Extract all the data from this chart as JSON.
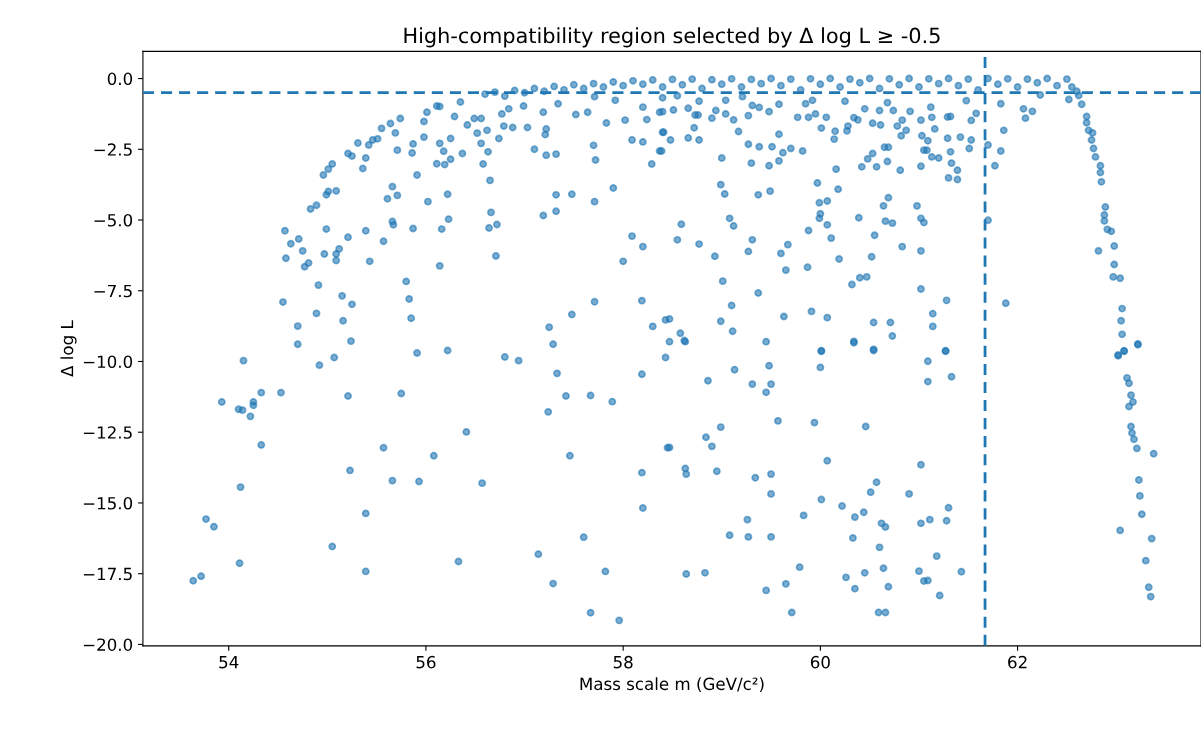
{
  "chart_data": {
    "type": "scatter",
    "title": "High-compatibility region selected by Δ log L ≥ -0.5",
    "xlabel": "Mass scale m (GeV/c²)",
    "ylabel": "Δ log L",
    "xlim": [
      53.13,
      63.86
    ],
    "ylim": [
      -20.05,
      0.96
    ],
    "xticks": [
      54,
      56,
      58,
      60,
      62
    ],
    "yticks": [
      {
        "value": 0,
        "label": "0.0"
      },
      {
        "value": -2.5,
        "label": "−2.5"
      },
      {
        "value": -5,
        "label": "−5.0"
      },
      {
        "value": -7.5,
        "label": "−7.5"
      },
      {
        "value": -10,
        "label": "−10.0"
      },
      {
        "value": -12.5,
        "label": "−12.5"
      },
      {
        "value": -15,
        "label": "−15.0"
      },
      {
        "value": -17.5,
        "label": "−17.5"
      },
      {
        "value": -20,
        "label": "−20.0"
      }
    ],
    "grid": false,
    "marker": "circle",
    "ref_lines": [
      {
        "axis": "y",
        "value": -0.5,
        "color": "#1f77b4",
        "line_style": "dashed"
      },
      {
        "axis": "x",
        "value": 61.67,
        "color": "#1f77b4",
        "line_style": "dashed"
      }
    ],
    "series": [
      {
        "color": "#1f77b4",
        "x": [
          54.15,
          53.93,
          54.1,
          54.14,
          54.22,
          54.25,
          54.25,
          54.33,
          54.33,
          54.53,
          54.7,
          54.92,
          55.07,
          55.24,
          55.21,
          55.75,
          55.91,
          56.22,
          56.8,
          56.94,
          57.29,
          57.33,
          57.42,
          57.67,
          57.89,
          57.24,
          58.19,
          58.43,
          56.41,
          55.57,
          56.08,
          57.46,
          58.45,
          55.23,
          55.66,
          55.93,
          56.57,
          58.19,
          54.12,
          55.39,
          58.2,
          53.77,
          53.85,
          55.05,
          57.6,
          57.14,
          56.33,
          54.11,
          55.39,
          57.82,
          53.64,
          53.72,
          57.29,
          57.67,
          57.96,
          58.47,
          58.63,
          59.45,
          60.01,
          60.34,
          60.54,
          61.27,
          61.09,
          59.13,
          59.48,
          60.0,
          58.86,
          59.31,
          59.5,
          59.45,
          61.09,
          61.33,
          59.57,
          59.94,
          60.46,
          58.99,
          58.84,
          58.9,
          58.47,
          60.07,
          61.02,
          58.63,
          58.64,
          58.95,
          59.34,
          59.5,
          59.5,
          60.57,
          60.51,
          60.9,
          60.01,
          60.22,
          59.83,
          60.35,
          60.44,
          60.62,
          60.66,
          61.02,
          61.11,
          61.28,
          61.3,
          59.26,
          59.08,
          59.27,
          59.5,
          60.33,
          60.6,
          61.18,
          59.79,
          58.64,
          58.83,
          60.26,
          60.45,
          60.64,
          61.0,
          61.43,
          59.45,
          59.65,
          60.35,
          60.69,
          61.05,
          61.09,
          61.21,
          59.71,
          60.59,
          60.66,
          63.02,
          63.08,
          63.22,
          63.11,
          63.13,
          63.15,
          63.17,
          63.13,
          63.15,
          63.16,
          63.18,
          63.21,
          63.38,
          63.23,
          63.24,
          63.26,
          63.04,
          63.36,
          63.3,
          63.33,
          63.35,
          54.57,
          54.63,
          54.71,
          54.58,
          54.75,
          54.77,
          54.81,
          54.91,
          54.55,
          54.7,
          54.89,
          55.15,
          55.25,
          55.16,
          54.97,
          55.09,
          55.12,
          55.09,
          54.99,
          55.21,
          55.39,
          55.43,
          55.57,
          55.66,
          55.67,
          55.87,
          55.8,
          55.83,
          55.85,
          56.14,
          56.16,
          56.23,
          56.64,
          56.72,
          56.71,
          56.66,
          57.19,
          57.32,
          57.32,
          57.48,
          57.71,
          57.9,
          58.09,
          58.2,
          58.0,
          57.71,
          57.48,
          57.25,
          58.19,
          58.3,
          58.43,
          54.83,
          54.89,
          54.96,
          55.01,
          55.05,
          55.01,
          54.99,
          55.09,
          55.21,
          55.25,
          55.31,
          55.39,
          55.36,
          55.42,
          55.46,
          55.51,
          55.55,
          55.64,
          55.74,
          55.69,
          55.71,
          55.66,
          55.61,
          55.71,
          55.91,
          55.86,
          55.87,
          55.98,
          56.02,
          55.98,
          56.01,
          56.11,
          56.19,
          56.25,
          56.18,
          56.14,
          56.25,
          56.22,
          56.14,
          56.29,
          56.37,
          56.42,
          56.58,
          56.65,
          56.63,
          56.62,
          56.52,
          56.56,
          56.74,
          56.79,
          56.88,
          57.03,
          57.1,
          57.22,
          57.32,
          57.21,
          57.22,
          57.52,
          57.7,
          57.72,
          57.83,
          58.02,
          58.09,
          58.2,
          58.24,
          58.29,
          58.37,
          58.4,
          56.11,
          56.35,
          56.49,
          56.56,
          56.77,
          56.99,
          57.19,
          57.34,
          57.64,
          57.92,
          58.2,
          58.37,
          56.84,
          57.71,
          58.4,
          58.55,
          58.77,
          58.4,
          58.51,
          58.66,
          58.73,
          58.76,
          58.41,
          58.48,
          58.66,
          58.72,
          58.77,
          58.39,
          58.9,
          58.94,
          59.04,
          59.04,
          59.12,
          59.17,
          59.27,
          59.21,
          59.31,
          59.38,
          59.48,
          59.58,
          59.58,
          59.27,
          59.38,
          59.51,
          59.62,
          59.7,
          59.82,
          59.3,
          59.48,
          59.58,
          59.0,
          58.99,
          59.03,
          59.37,
          59.49,
          58.59,
          58.55,
          58.77,
          58.93,
          59.08,
          59.12,
          59.31,
          59.27,
          59.01,
          59.1,
          59.37,
          58.47,
          58.58,
          58.62,
          58.99,
          59.11,
          59.63,
          59.91,
          60.07,
          59.87,
          59.65,
          59.6,
          59.67,
          59.88,
          59.77,
          59.88,
          59.95,
          59.85,
          59.92,
          60.01,
          60.06,
          59.97,
          59.99,
          60.07,
          59.99,
          60.0,
          60.07,
          60.11,
          60.18,
          60.16,
          60.14,
          60.15,
          60.27,
          60.28,
          60.34,
          60.38,
          60.25,
          60.45,
          60.53,
          60.61,
          60.6,
          60.68,
          60.74,
          60.83,
          60.78,
          60.87,
          60.82,
          60.91,
          61.02,
          61.12,
          61.13,
          61.16,
          61.03,
          61.09,
          61.08,
          61.05,
          61.13,
          61.2,
          61.29,
          61.32,
          61.33,
          61.39,
          61.3,
          61.39,
          61.42,
          61.53,
          61.51,
          61.53,
          61.58,
          61.48,
          61.29,
          61.32,
          61.02,
          60.81,
          60.68,
          60.57,
          60.42,
          60.48,
          60.53,
          60.65,
          60.69,
          60.69,
          60.64,
          60.66,
          60.73,
          60.39,
          60.55,
          60.52,
          60.19,
          60.83,
          61.02,
          60.98,
          61.02,
          61.05,
          61.02,
          61.28,
          61.14,
          61.14,
          60.54,
          60.71,
          60.73,
          60.34,
          60.54,
          60.01,
          60.32,
          60.4,
          60.47,
          61.27,
          61.7,
          61.83,
          61.77,
          61.86,
          61.7,
          61.88,
          61.83,
          62.06,
          62.08,
          62.15,
          62.23,
          62.52,
          62.65,
          62.7,
          62.7,
          62.72,
          62.76,
          62.75,
          62.77,
          62.79,
          62.84,
          62.84,
          62.85,
          62.89,
          62.88,
          62.88,
          62.91,
          62.95,
          62.82,
          62.98,
          62.98,
          62.97,
          63.04,
          63.06,
          63.05,
          63.06,
          63.22,
          63.02,
          63.08,
          56.6,
          56.7,
          56.8,
          56.9,
          57.0,
          57.1,
          57.2,
          57.3,
          57.4,
          57.5,
          57.6,
          57.7,
          57.8,
          57.9,
          58.0,
          58.1,
          58.2,
          58.3,
          58.4,
          58.5,
          58.6,
          58.7,
          58.8,
          58.9,
          59.0,
          59.1,
          59.2,
          59.3,
          59.4,
          59.5,
          59.6,
          59.7,
          59.8,
          59.9,
          60.0,
          60.1,
          60.2,
          60.3,
          60.4,
          60.5,
          60.6,
          60.7,
          60.8,
          60.9,
          61.0,
          61.1,
          61.2,
          61.3,
          61.4,
          61.5,
          61.6,
          61.7,
          61.8,
          61.9,
          62.0,
          62.1,
          62.2,
          62.3,
          62.4,
          62.5,
          62.55,
          62.6,
          62.62
        ],
        "values": [
          -9.97,
          -11.43,
          -11.69,
          -11.72,
          -11.94,
          -11.43,
          -11.55,
          -11.1,
          -12.95,
          -11.1,
          -9.39,
          -10.13,
          -9.86,
          -9.28,
          -11.22,
          -11.13,
          -9.7,
          -9.61,
          -9.84,
          -9.97,
          -9.39,
          -10.42,
          -11.22,
          -11.2,
          -11.42,
          -11.78,
          -10.45,
          -9.86,
          -12.49,
          -13.05,
          -13.33,
          -13.33,
          -13.05,
          -13.85,
          -14.21,
          -14.24,
          -14.3,
          -13.93,
          -14.44,
          -15.37,
          -15.18,
          -15.57,
          -15.84,
          -16.54,
          -16.21,
          -16.81,
          -17.07,
          -17.13,
          -17.42,
          -17.42,
          -17.75,
          -17.59,
          -17.85,
          -18.88,
          -19.15,
          -9.3,
          -9.3,
          -9.3,
          -9.64,
          -9.34,
          -9.61,
          -9.64,
          -9.99,
          -10.29,
          -10.15,
          -10.21,
          -10.68,
          -10.8,
          -10.8,
          -11.09,
          -10.71,
          -10.54,
          -12.1,
          -12.16,
          -12.3,
          -12.32,
          -12.68,
          -13.0,
          -13.04,
          -13.51,
          -13.65,
          -13.78,
          -13.98,
          -13.88,
          -14.11,
          -13.98,
          -14.68,
          -14.27,
          -14.62,
          -14.68,
          -14.88,
          -15.11,
          -15.44,
          -15.5,
          -15.33,
          -15.72,
          -15.85,
          -15.72,
          -15.59,
          -15.63,
          -15.17,
          -15.59,
          -16.14,
          -16.2,
          -16.2,
          -16.24,
          -16.57,
          -16.88,
          -17.27,
          -17.51,
          -17.47,
          -17.63,
          -17.47,
          -17.31,
          -17.41,
          -17.43,
          -18.09,
          -17.86,
          -18.03,
          -17.96,
          -17.76,
          -17.74,
          -18.27,
          -18.87,
          -18.87,
          -18.87,
          -9.8,
          -9.64,
          -9.41,
          -10.58,
          -10.77,
          -11.19,
          -11.43,
          -11.59,
          -12.3,
          -12.53,
          -12.75,
          -13.07,
          -13.26,
          -14.19,
          -14.75,
          -15.4,
          -15.97,
          -16.26,
          -17.04,
          -17.98,
          -18.31,
          -5.38,
          -5.84,
          -5.67,
          -6.35,
          -6.09,
          -6.65,
          -6.52,
          -7.3,
          -7.9,
          -8.75,
          -8.3,
          -7.68,
          -7.98,
          -8.56,
          -6.2,
          -6.2,
          -6.02,
          -6.43,
          -5.32,
          -5.61,
          -5.38,
          -6.46,
          -5.75,
          -5.05,
          -5.17,
          -5.3,
          -7.17,
          -7.79,
          -8.47,
          -6.62,
          -5.32,
          -4.97,
          -5.28,
          -5.16,
          -6.27,
          -4.73,
          -4.84,
          -4.69,
          -4.11,
          -4.09,
          -4.35,
          -3.87,
          -5.57,
          -5.94,
          -6.46,
          -7.89,
          -8.34,
          -8.79,
          -7.85,
          -8.76,
          -8.53,
          -4.61,
          -4.48,
          -3.41,
          -3.2,
          -3.02,
          -3.99,
          -4.11,
          -3.97,
          -2.65,
          -2.74,
          -2.28,
          -2.81,
          -3.18,
          -2.35,
          -2.17,
          -2.13,
          -1.76,
          -1.59,
          -1.41,
          -1.92,
          -2.53,
          -3.82,
          -4.25,
          -4.13,
          -3.41,
          -2.63,
          -2.31,
          -2.07,
          -4.35,
          -1.52,
          -1.19,
          -3.01,
          -3.04,
          -2.85,
          -2.57,
          -2.29,
          -2.12,
          -4.09,
          -0.99,
          -1.34,
          -2.65,
          -1.64,
          -3.02,
          -3.6,
          -2.59,
          -1.83,
          -1.93,
          -2.29,
          -2.12,
          -1.68,
          -1.73,
          -1.73,
          -2.5,
          -2.71,
          -2.67,
          -1.98,
          -1.78,
          -1.27,
          -2.36,
          -2.88,
          -1.57,
          -1.47,
          -2.17,
          -2.24,
          -1.45,
          -3.02,
          -2.56,
          -1.9,
          -0.97,
          -0.83,
          -1.41,
          -1.41,
          -1.25,
          -0.97,
          -1.19,
          -0.89,
          -1.19,
          -0.77,
          -1.01,
          -1.19,
          -1.07,
          -0.64,
          -0.68,
          -0.61,
          -0.8,
          -1.17,
          -1.11,
          -1.05,
          -1.29,
          -1.29,
          -1.9,
          -2.17,
          -2.1,
          -1.74,
          -2.17,
          -2.56,
          -1.4,
          -1.13,
          -0.77,
          -1.25,
          -1.46,
          -1.87,
          -1.31,
          -0.64,
          -0.95,
          -1.02,
          -1.17,
          -0.91,
          -1.97,
          -2.32,
          -2.41,
          -2.41,
          -2.62,
          -2.47,
          -2.56,
          -2.99,
          -3.08,
          -2.91,
          -2.81,
          -3.75,
          -4.08,
          -4.11,
          -3.98,
          -5.15,
          -5.7,
          -5.85,
          -6.28,
          -4.94,
          -5.21,
          -5.7,
          -6.11,
          -7.16,
          -8.02,
          -7.58,
          -8.5,
          -9.0,
          -9.26,
          -8.58,
          -8.93,
          -8.41,
          -8.23,
          -8.45,
          -6.67,
          -6.77,
          -6.18,
          -5.87,
          -5.37,
          -1.37,
          -1.37,
          -1.25,
          -0.89,
          -0.77,
          -1.75,
          -1.37,
          -3.69,
          -4.39,
          -4.33,
          -4.94,
          -4.78,
          -5.17,
          -5.64,
          -3.91,
          -3.2,
          -2.14,
          -1.86,
          -1.85,
          -1.68,
          -1.38,
          -1.46,
          -0.8,
          -1.07,
          -1.58,
          -1.64,
          -1.13,
          -0.85,
          -1.13,
          -1.47,
          -1.68,
          -1.83,
          -2.02,
          -1.16,
          -1.47,
          -1.01,
          -1.37,
          -1.78,
          -2.02,
          -2.2,
          -2.53,
          -2.53,
          -2.77,
          -2.81,
          -2.11,
          -2.59,
          -2.99,
          -3.24,
          -3.51,
          -3.57,
          -2.07,
          -2.17,
          -2.47,
          -1.48,
          -1.23,
          -0.78,
          -1.36,
          -1.34,
          -3.1,
          -3.24,
          -2.93,
          -3.12,
          -3.12,
          -2.84,
          -2.65,
          -2.43,
          -2.43,
          -4.21,
          -4.5,
          -5.04,
          -5.11,
          -4.92,
          -5.54,
          -6.3,
          -6.38,
          -5.94,
          -6.09,
          -4.5,
          -4.94,
          -5.09,
          -7.44,
          -7.84,
          -8.31,
          -8.76,
          -8.62,
          -8.62,
          -9.1,
          -9.29,
          -9.57,
          -9.62,
          -7.28,
          -7.04,
          -7.01,
          -9.62,
          -2.35,
          -2.56,
          -3.08,
          -1.83,
          -5.01,
          -7.94,
          -0.89,
          -1.07,
          -1.4,
          -1.16,
          -0.58,
          -0.74,
          -0.91,
          -1.34,
          -1.56,
          -1.83,
          -1.92,
          -2.17,
          -2.47,
          -2.77,
          -3.08,
          -3.32,
          -3.65,
          -4.54,
          -4.82,
          -5.03,
          -5.33,
          -5.4,
          -6.09,
          -5.92,
          -6.57,
          -7.01,
          -7.06,
          -8.13,
          -8.56,
          -9.04,
          -9.38,
          -9.77,
          -9.62,
          -0.55,
          -0.48,
          -0.62,
          -0.42,
          -0.5,
          -0.35,
          -0.45,
          -0.28,
          -0.4,
          -0.22,
          -0.35,
          -0.18,
          -0.3,
          -0.12,
          -0.25,
          -0.08,
          -0.2,
          -0.05,
          -0.3,
          -0.03,
          -0.22,
          -0.02,
          -0.35,
          -0.04,
          -0.2,
          -0.01,
          -0.3,
          -0.03,
          -0.18,
          0.0,
          -0.25,
          -0.02,
          -0.4,
          -0.01,
          -0.2,
          0.0,
          -0.3,
          -0.02,
          -0.15,
          0.0,
          -0.35,
          -0.01,
          -0.22,
          0.0,
          -0.3,
          -0.01,
          -0.18,
          0.0,
          -0.25,
          -0.02,
          -0.4,
          0.0,
          -0.2,
          -0.01,
          -0.3,
          -0.02,
          -0.15,
          0.0,
          -0.25,
          -0.02,
          -0.3,
          -0.45,
          -0.6
        ]
      }
    ]
  }
}
